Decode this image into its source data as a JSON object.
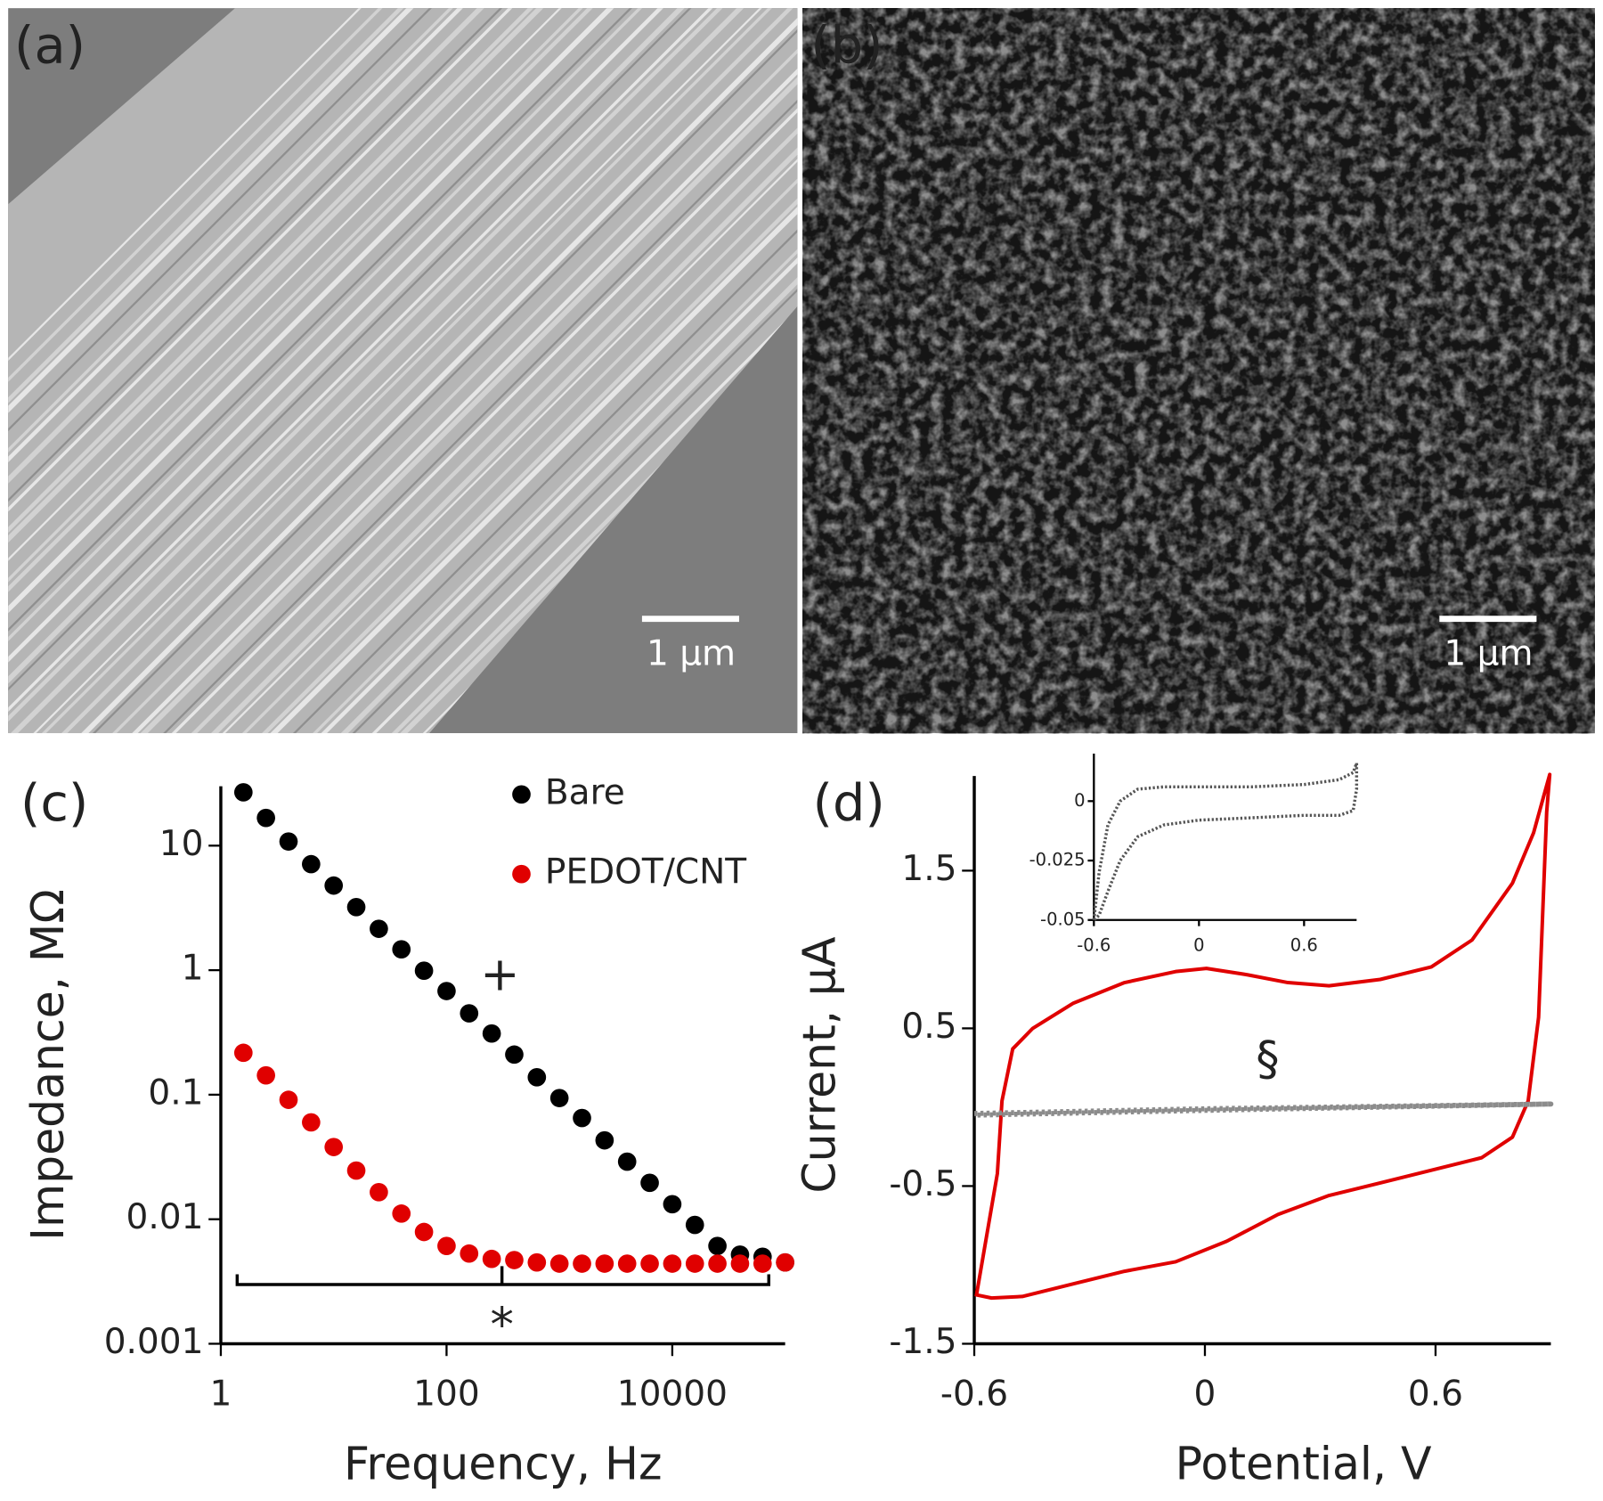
{
  "panels": [
    {
      "label": "(a)",
      "scale_bar": "1 μm"
    },
    {
      "label": "(b)",
      "scale_bar": "1 μm"
    }
  ],
  "chart_data": [
    {
      "type": "scatter",
      "panel_label": "(c)",
      "x_label": "Frequency, Hz",
      "y_label": "Impedance, MΩ",
      "log_x": true,
      "log_y": true,
      "legend": "top-right",
      "xlim": [
        1,
        100000
      ],
      "xticks": [
        1,
        100,
        10000
      ],
      "ylim": [
        0.001,
        30
      ],
      "yticks": [
        0.001,
        0.01,
        0.1,
        1,
        10
      ],
      "x": [
        1.585,
        2.512,
        3.981,
        6.31,
        10,
        15.85,
        25.12,
        39.81,
        63.1,
        100,
        158.5,
        251.2,
        398.1,
        631,
        1000,
        1585,
        2512,
        3981,
        6310,
        10000,
        15850,
        25120,
        39810,
        63100,
        100000
      ],
      "series": [
        {
          "name": "Bare",
          "color": "#000000",
          "values": [
            26.8,
            16.7,
            10.8,
            7.1,
            4.78,
            3.21,
            2.15,
            1.47,
            0.99,
            0.68,
            0.45,
            0.31,
            0.21,
            0.138,
            0.094,
            0.065,
            0.043,
            0.029,
            0.0196,
            0.0132,
            0.009,
            0.0061,
            0.0052,
            0.005,
            0.0045
          ]
        },
        {
          "name": "PEDOT/CNT",
          "color": "#e00000",
          "values": [
            0.217,
            0.143,
            0.091,
            0.06,
            0.038,
            0.0246,
            0.0165,
            0.0111,
            0.0079,
            0.0061,
            0.0053,
            0.0048,
            0.0047,
            0.0045,
            0.0044,
            0.0044,
            0.0044,
            0.0044,
            0.0044,
            0.0044,
            0.0044,
            0.0044,
            0.0044,
            0.0044,
            0.0045
          ]
        }
      ],
      "annotations": [
        "+",
        "*"
      ]
    },
    {
      "type": "line",
      "panel_label": "(d)",
      "x_label": "Potential, V",
      "y_label": "Current, μA",
      "xlim": [
        -0.6,
        0.9
      ],
      "xticks": [
        -0.6,
        0,
        0.6
      ],
      "ylim": [
        -1.5,
        2.1
      ],
      "yticks": [
        -1.5,
        -0.5,
        0.5,
        1.5
      ],
      "series": [
        {
          "color": "#e00000",
          "style": "solid",
          "x": [
            -0.595,
            -0.54,
            -0.528,
            -0.5,
            -0.448,
            -0.342,
            -0.209,
            -0.076,
            0.004,
            0.11,
            0.216,
            0.323,
            0.456,
            0.589,
            0.695,
            0.8,
            0.855,
            0.881,
            0.897,
            0.889,
            0.868,
            0.841,
            0.8,
            0.72,
            0.589,
            0.456,
            0.323,
            0.19,
            0.057,
            -0.076,
            -0.209,
            -0.342,
            -0.475,
            -0.555,
            -0.595
          ],
          "values": [
            -1.2,
            -0.42,
            0.04,
            0.37,
            0.5,
            0.66,
            0.79,
            0.86,
            0.88,
            0.84,
            0.79,
            0.77,
            0.81,
            0.89,
            1.06,
            1.42,
            1.74,
            1.97,
            2.11,
            1.87,
            0.57,
            0.04,
            -0.19,
            -0.32,
            -0.4,
            -0.48,
            -0.56,
            -0.68,
            -0.85,
            -0.98,
            -1.04,
            -1.12,
            -1.2,
            -1.21,
            -1.19
          ]
        },
        {
          "color": "#8c8c8c",
          "style": "dotted",
          "x": [
            -0.6,
            0,
            0.9,
            0,
            -0.6
          ],
          "values": [
            -0.04,
            -0.01,
            0.02,
            -0.02,
            -0.05
          ]
        }
      ],
      "annotations": [
        "§"
      ]
    },
    {
      "type": "line",
      "inset": true,
      "xlim": [
        -0.6,
        0.9
      ],
      "xticks": [
        -0.6,
        0,
        0.6
      ],
      "ylim": [
        -0.05,
        0.02
      ],
      "yticks": [
        -0.05,
        -0.025,
        0
      ],
      "series": [
        {
          "color": "#555555",
          "style": "dotted",
          "x": [
            -0.6,
            -0.57,
            -0.52,
            -0.45,
            -0.35,
            -0.2,
            0,
            0.3,
            0.6,
            0.8,
            0.88,
            0.9,
            0.9,
            0.88,
            0.8,
            0.6,
            0.3,
            0,
            -0.2,
            -0.35,
            -0.45,
            -0.52,
            -0.57,
            -0.6
          ],
          "values": [
            -0.05,
            -0.03,
            -0.01,
            0,
            0.005,
            0.006,
            0.006,
            0.006,
            0.007,
            0.009,
            0.012,
            0.016,
            0.005,
            -0.004,
            -0.006,
            -0.006,
            -0.007,
            -0.008,
            -0.01,
            -0.015,
            -0.025,
            -0.038,
            -0.048,
            -0.05
          ]
        }
      ]
    }
  ]
}
